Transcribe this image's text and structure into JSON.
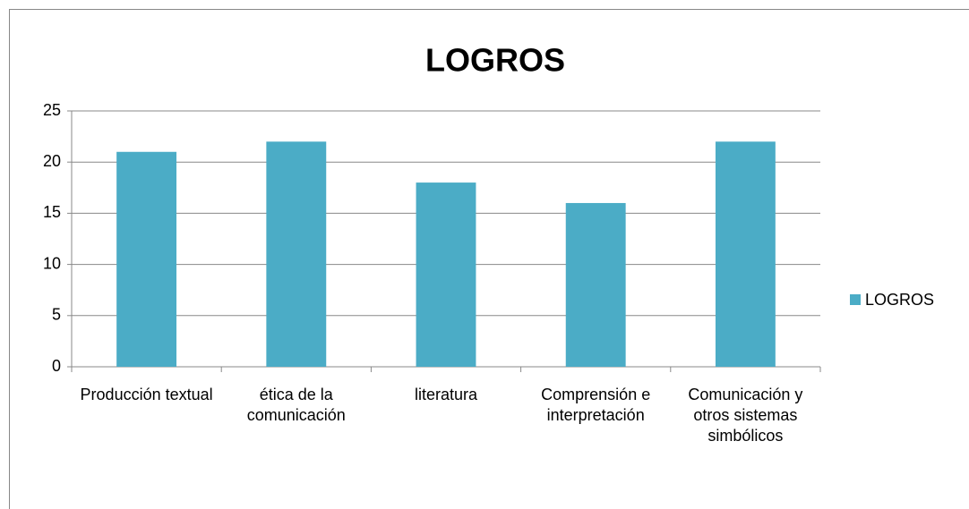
{
  "chart_data": {
    "type": "bar",
    "title": "LOGROS",
    "categories": [
      "Producción textual",
      "ética de la comunicación",
      "literatura",
      "Comprensión e interpretación",
      "Comunicación y otros sistemas simbólicos"
    ],
    "series": [
      {
        "name": "LOGROS",
        "color": "#4bacc6",
        "values": [
          21,
          22,
          18,
          16,
          22
        ]
      }
    ],
    "ylim": [
      0,
      25
    ],
    "yticks": [
      0,
      5,
      10,
      15,
      20,
      25
    ],
    "grid": true,
    "legend": "right"
  }
}
